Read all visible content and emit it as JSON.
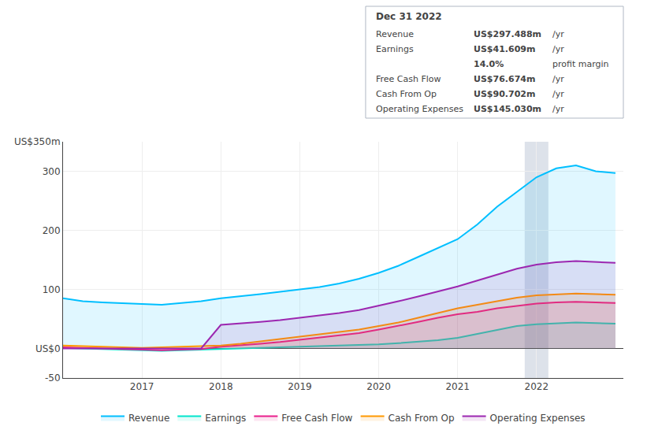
{
  "chart_data": {
    "type": "area",
    "x": [
      2016,
      2016.25,
      2016.5,
      2016.75,
      2017,
      2017.25,
      2017.5,
      2017.75,
      2018,
      2018.25,
      2018.5,
      2018.75,
      2019,
      2019.25,
      2019.5,
      2019.75,
      2020,
      2020.25,
      2020.5,
      2020.75,
      2021,
      2021.25,
      2021.5,
      2021.75,
      2022,
      2022.25,
      2022.5,
      2022.75,
      2023
    ],
    "series": [
      {
        "name": "Revenue",
        "color": "#00bfff",
        "values": [
          85,
          80,
          78,
          77,
          76,
          74,
          77,
          80,
          85,
          88,
          92,
          96,
          100,
          104,
          110,
          118,
          128,
          140,
          155,
          170,
          185,
          210,
          240,
          265,
          290,
          305,
          310,
          300,
          297
        ]
      },
      {
        "name": "Earnings",
        "color": "#00e5cc",
        "values": [
          1,
          0,
          -1,
          -2,
          -3,
          -4,
          -3,
          -2,
          -1,
          0,
          1,
          2,
          3,
          4,
          5,
          6,
          7,
          9,
          11,
          14,
          18,
          25,
          32,
          38,
          41,
          43,
          44,
          43,
          42
        ]
      },
      {
        "name": "Free Cash Flow",
        "color": "#e91e8c",
        "values": [
          2,
          1,
          0,
          -1,
          -2,
          -3,
          -2,
          -1,
          3,
          5,
          8,
          11,
          15,
          18,
          22,
          26,
          32,
          38,
          45,
          52,
          58,
          62,
          68,
          72,
          76,
          78,
          79,
          78,
          77
        ]
      },
      {
        "name": "Cash From Op",
        "color": "#ff9800",
        "values": [
          5,
          4,
          3,
          2,
          1,
          2,
          3,
          4,
          5,
          8,
          12,
          16,
          20,
          24,
          28,
          32,
          38,
          44,
          52,
          60,
          68,
          74,
          80,
          86,
          90,
          92,
          93,
          92,
          91
        ]
      },
      {
        "name": "Operating Expenses",
        "color": "#9c27b0",
        "values": [
          0,
          0,
          0,
          0,
          0,
          0,
          0,
          0,
          40,
          42,
          45,
          48,
          52,
          55,
          60,
          65,
          72,
          80,
          88,
          96,
          105,
          115,
          125,
          135,
          142,
          146,
          148,
          147,
          145
        ]
      }
    ],
    "xlim": [
      2016,
      2023.1
    ],
    "xticks": [
      2017,
      2018,
      2019,
      2020,
      2021,
      2022
    ],
    "ylim": [
      -50,
      350
    ],
    "yticks": [
      -50,
      {
        "value": 0,
        "label": "US$0"
      },
      100,
      200,
      300,
      {
        "value": 350,
        "label": "US$350m"
      }
    ],
    "grid": true,
    "highlight_x": 2022,
    "annotations": [
      [
        "Dec 31 2022"
      ],
      [
        "Revenue",
        "US$297.488m",
        "/yr"
      ],
      [
        "Earnings",
        "US$41.609m",
        "/yr"
      ],
      [
        "14.0%",
        "profit margin"
      ],
      [
        "Free Cash Flow",
        "US$76.674m",
        "/yr"
      ],
      [
        "Cash From Op",
        "US$90.702m",
        "/yr"
      ],
      [
        "Operating Expenses",
        "US$145.030m",
        "/yr"
      ]
    ]
  }
}
